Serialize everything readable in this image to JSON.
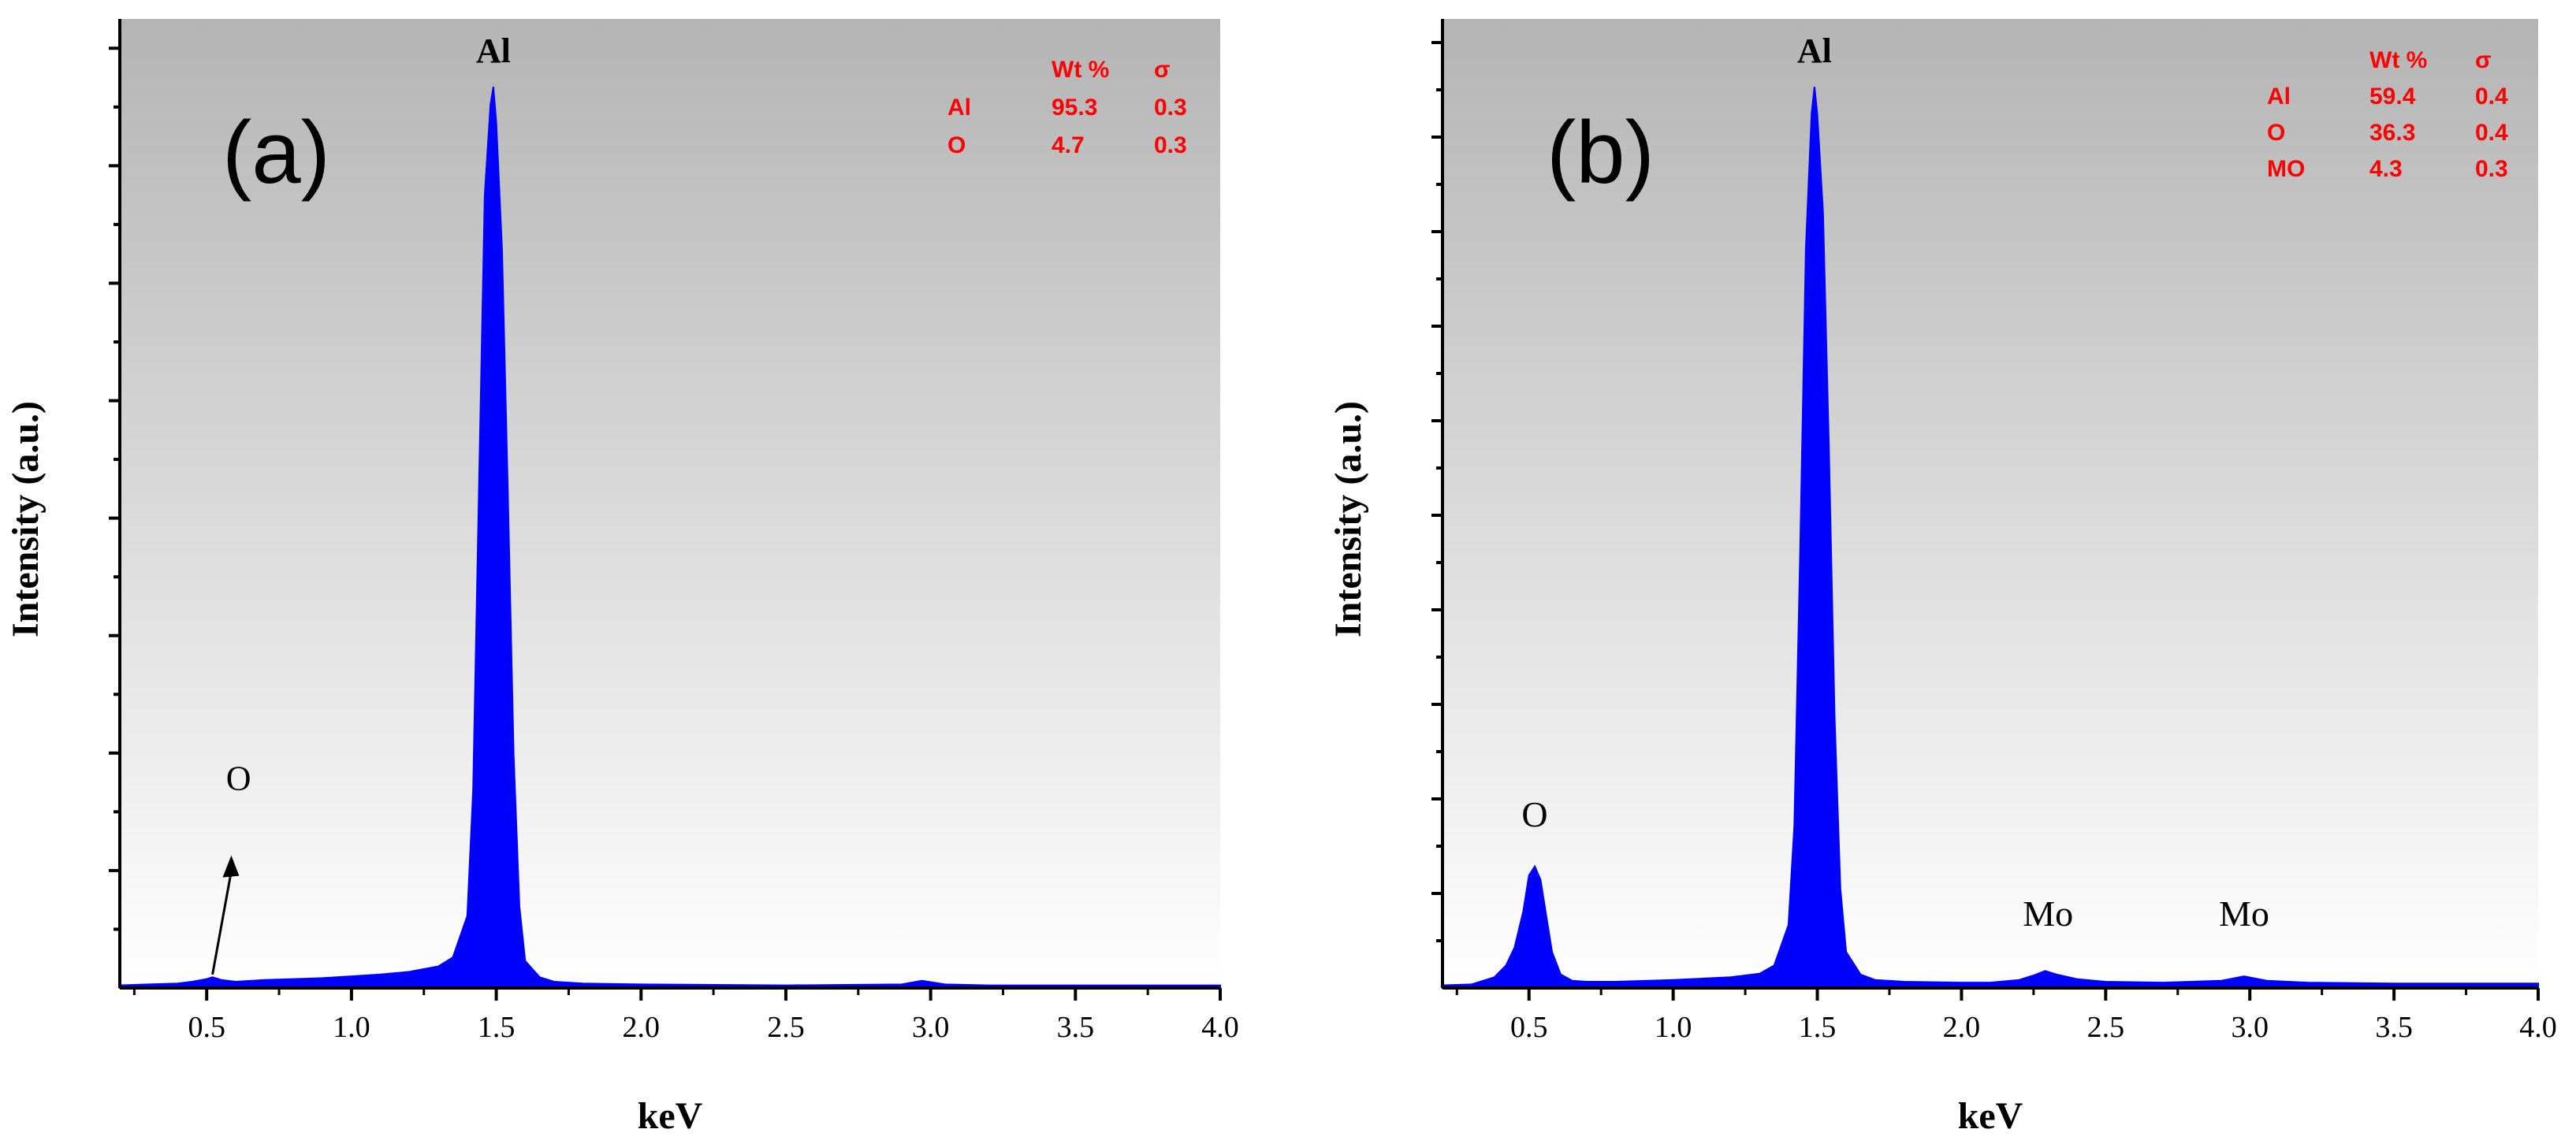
{
  "colors": {
    "spectrum": "#0000ff",
    "table_text": "#ff0000",
    "plot_bg_top": "#b4b4b4",
    "plot_bg_bottom": "#ffffff",
    "axis": "#000000"
  },
  "chart_data": [
    {
      "type": "area",
      "panel_label": "(a)",
      "title": "",
      "xlabel": "keV",
      "ylabel": "Intensity (a.u.)",
      "xlim": [
        0.2,
        4.0
      ],
      "ylim": [
        0,
        100
      ],
      "xticks": [
        "0.5",
        "1.0",
        "1.5",
        "2.0",
        "2.5",
        "3.0",
        "3.5",
        "4.0"
      ],
      "x": [
        0.2,
        0.3,
        0.4,
        0.45,
        0.5,
        0.52,
        0.55,
        0.6,
        0.7,
        0.8,
        0.9,
        1.0,
        1.1,
        1.2,
        1.3,
        1.35,
        1.4,
        1.42,
        1.44,
        1.46,
        1.48,
        1.49,
        1.5,
        1.52,
        1.54,
        1.56,
        1.58,
        1.6,
        1.65,
        1.7,
        1.8,
        2.0,
        2.5,
        2.9,
        2.97,
        3.05,
        3.2,
        3.5,
        4.0
      ],
      "values": [
        0.3,
        0.4,
        0.5,
        0.7,
        1.0,
        1.2,
        0.9,
        0.7,
        0.9,
        1.0,
        1.1,
        1.3,
        1.5,
        1.8,
        2.4,
        3.4,
        8,
        22,
        55,
        88,
        98,
        100,
        96,
        82,
        55,
        26,
        9,
        3,
        1.2,
        0.7,
        0.5,
        0.4,
        0.3,
        0.4,
        0.8,
        0.4,
        0.3,
        0.3,
        0.3
      ],
      "annotations": [
        {
          "text": "Al",
          "x": 1.49,
          "y": 102
        },
        {
          "text": "O",
          "x": 0.61,
          "y": 22
        }
      ],
      "composition_table": {
        "headers": [
          "",
          "Wt %",
          "σ"
        ],
        "rows": [
          [
            "Al",
            "95.3",
            "0.3"
          ],
          [
            "O",
            "4.7",
            "0.3"
          ]
        ]
      }
    },
    {
      "type": "area",
      "panel_label": "(b)",
      "title": "",
      "xlabel": "keV",
      "ylabel": "Intensity (a.u.)",
      "xlim": [
        0.2,
        4.0
      ],
      "ylim": [
        0,
        100
      ],
      "xticks": [
        "0.5",
        "1.0",
        "1.5",
        "2.0",
        "2.5",
        "3.0",
        "3.5",
        "4.0"
      ],
      "x": [
        0.2,
        0.3,
        0.38,
        0.42,
        0.45,
        0.48,
        0.5,
        0.52,
        0.54,
        0.56,
        0.58,
        0.61,
        0.65,
        0.7,
        0.8,
        1.0,
        1.2,
        1.3,
        1.35,
        1.4,
        1.42,
        1.44,
        1.46,
        1.48,
        1.49,
        1.5,
        1.52,
        1.54,
        1.56,
        1.58,
        1.6,
        1.65,
        1.7,
        1.8,
        2.0,
        2.1,
        2.2,
        2.25,
        2.29,
        2.33,
        2.4,
        2.5,
        2.7,
        2.9,
        2.98,
        3.06,
        3.2,
        3.5,
        4.0
      ],
      "values": [
        0.3,
        0.4,
        1.2,
        2.5,
        4.5,
        8.5,
        12.5,
        13.5,
        12,
        8,
        4,
        1.5,
        0.8,
        0.7,
        0.7,
        0.9,
        1.2,
        1.6,
        2.5,
        7,
        18,
        48,
        82,
        97,
        100,
        97,
        86,
        60,
        30,
        11,
        4,
        1.5,
        0.9,
        0.7,
        0.6,
        0.6,
        0.9,
        1.4,
        1.9,
        1.5,
        1.0,
        0.7,
        0.6,
        0.8,
        1.3,
        0.8,
        0.6,
        0.5,
        0.5
      ],
      "annotations": [
        {
          "text": "Al",
          "x": 1.49,
          "y": 102
        },
        {
          "text": "O",
          "x": 0.52,
          "y": 16
        },
        {
          "text": "Mo",
          "x": 2.3,
          "y": 5
        },
        {
          "text": "Mo",
          "x": 2.98,
          "y": 5
        }
      ],
      "composition_table": {
        "headers": [
          "",
          "Wt %",
          "σ"
        ],
        "rows": [
          [
            "Al",
            "59.4",
            "0.4"
          ],
          [
            "O",
            "36.3",
            "0.4"
          ],
          [
            "MO",
            "4.3",
            "0.3"
          ]
        ]
      }
    }
  ]
}
